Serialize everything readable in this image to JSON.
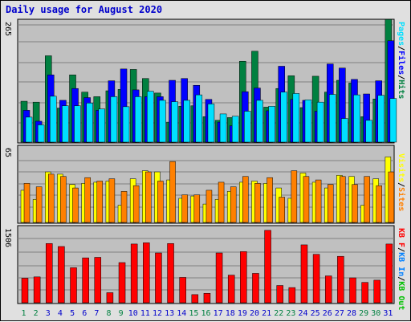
{
  "chart_data": {
    "type": "bar",
    "title": "Daily usage for August 2020",
    "categories": [
      "1",
      "2",
      "3",
      "4",
      "5",
      "6",
      "7",
      "8",
      "9",
      "10",
      "11",
      "12",
      "13",
      "14",
      "15",
      "16",
      "17",
      "18",
      "19",
      "20",
      "21",
      "22",
      "23",
      "24",
      "25",
      "26",
      "27",
      "28",
      "29",
      "30",
      "31"
    ],
    "weekend_days": [
      1,
      2,
      8,
      9,
      15,
      16,
      22,
      23,
      29,
      30
    ],
    "colors": {
      "hits": "#008040",
      "files": "#0000ff",
      "pages": "#00e0ff",
      "visits": "#ffff00",
      "sites": "#ff8000",
      "kbin": "#0080ff",
      "kbout": "#00c000",
      "kbf": "#ff0000",
      "weekday_label": "#0000cc",
      "weekend_label": "#008040",
      "plot_bg": "#c0c0c0",
      "grid": "#808080"
    },
    "panels": [
      {
        "id": "top",
        "ymax": "265",
        "ylim": [
          0,
          265
        ],
        "series": [
          {
            "name": "Hits",
            "values": [
              90,
              88,
              190,
              75,
              148,
              110,
              100,
              113,
              116,
              160,
              140,
              108,
              44,
              79,
              80,
              56,
              48,
              54,
              178,
              200,
              77,
              118,
              146,
              76,
              145,
              110,
              136,
              130,
              56,
              95,
              270
            ]
          },
          {
            "name": "Files",
            "values": [
              70,
              46,
              148,
              92,
              118,
              98,
              70,
              135,
              161,
              115,
              100,
              100,
              136,
              140,
              125,
              94,
              44,
              36,
              111,
              119,
              69,
              167,
              94,
              92,
              68,
              172,
              163,
              138,
              106,
              135,
              223
            ]
          },
          {
            "name": "Pages",
            "values": [
              55,
              38,
              101,
              80,
              80,
              86,
              73,
              100,
              78,
              100,
              112,
              92,
              89,
              92,
              104,
              84,
              62,
              57,
              68,
              92,
              79,
              110,
              107,
              93,
              88,
              105,
              52,
              104,
              48,
              103,
              96
            ]
          }
        ]
      },
      {
        "id": "middle",
        "ymax": "65",
        "ylim": [
          0,
          65
        ],
        "series": [
          {
            "name": "Visits",
            "values": [
              28,
              20,
              44,
              42,
              33,
              34,
              35,
              36,
              15,
              38,
              45,
              44,
              37,
              21,
              23,
              16,
              20,
              27,
              35,
              36,
              34,
              30,
              21,
              43,
              35,
              30,
              41,
              40,
              15,
              38,
              57
            ]
          },
          {
            "name": "Sites",
            "values": [
              34,
              31,
              42,
              40,
              30,
              39,
              36,
              38,
              27,
              32,
              44,
              36,
              53,
              24,
              24,
              28,
              35,
              31,
              40,
              34,
              39,
              22,
              45,
              40,
              37,
              33,
              40,
              33,
              40,
              32,
              44
            ]
          }
        ]
      },
      {
        "id": "bottom",
        "ymax": "1506",
        "ylim": [
          0,
          1506
        ],
        "series": [
          {
            "name": "KB F",
            "values": [
              495,
              521,
              1194,
              1134,
              706,
              905,
              915,
              203,
              810,
              1184,
              1209,
              1004,
              1194,
              511,
              164,
              190,
              1004,
              557,
              1031,
              592,
              1460,
              348,
              306,
              1167,
              976,
              541,
              936,
              502,
              410,
              455,
              1184
            ]
          }
        ]
      }
    ],
    "legend_top": [
      "Pages",
      "/",
      "Files",
      "/",
      "Hits"
    ],
    "legend_middle": [
      "Visits",
      "/",
      "Sites"
    ],
    "legend_bottom": [
      "KB F",
      "/",
      "KB In",
      "/",
      "KB Out"
    ]
  }
}
